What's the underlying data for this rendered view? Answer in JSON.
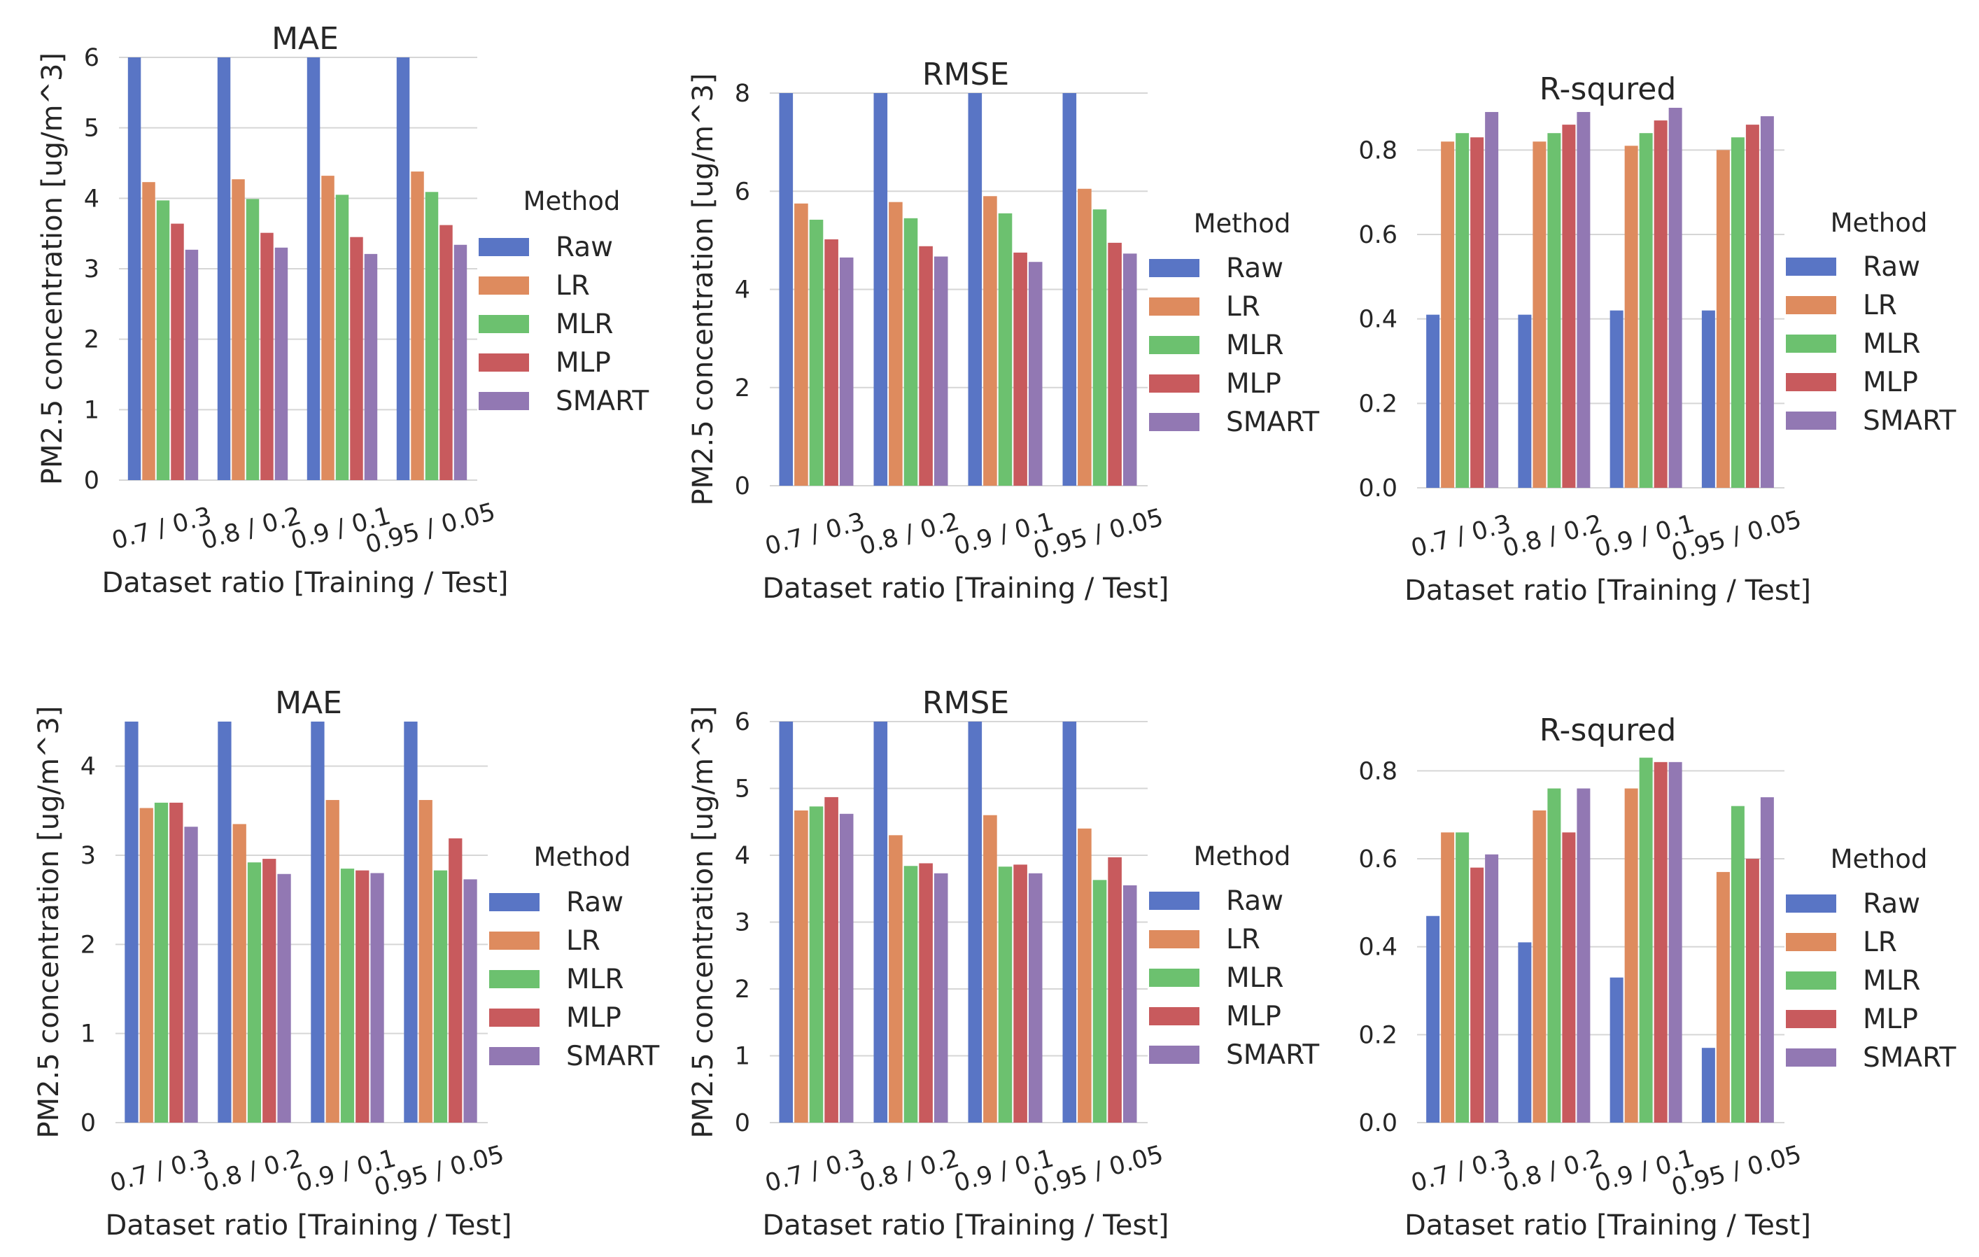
{
  "figure": {
    "legend_title": "Method",
    "xlabel": "Dataset ratio [Training / Test]",
    "ylabel": "PM2.5 concentration [ug/m^3]",
    "categories": [
      "0.7 / 0.3",
      "0.8 / 0.2",
      "0.9 / 0.1",
      "0.95 / 0.05"
    ],
    "series_names": [
      "Raw",
      "LR",
      "MLR",
      "MLP",
      "SMART"
    ],
    "colors": {
      "Raw": "#5975c5",
      "LR": "#de8b5e",
      "MLR": "#6cc16f",
      "MLP": "#c85a5d",
      "SMART": "#9278b3"
    }
  },
  "chart_data": [
    {
      "type": "bar",
      "title": "MAE",
      "xlabel": "Dataset ratio [Training / Test]",
      "ylabel": "PM2.5 concentration [ug/m^3]",
      "categories": [
        "0.7 / 0.3",
        "0.8 / 0.2",
        "0.9 / 0.1",
        "0.95 / 0.05"
      ],
      "ylim": [
        0,
        6
      ],
      "yticks": [
        0,
        1,
        2,
        3,
        4,
        5,
        6
      ],
      "grid": true,
      "legend": "right",
      "series": [
        {
          "name": "Raw",
          "values": [
            6,
            6,
            6,
            6
          ]
        },
        {
          "name": "LR",
          "values": [
            4.23,
            4.27,
            4.32,
            4.38
          ]
        },
        {
          "name": "MLR",
          "values": [
            3.97,
            3.99,
            4.05,
            4.09
          ]
        },
        {
          "name": "MLP",
          "values": [
            3.64,
            3.51,
            3.45,
            3.62
          ]
        },
        {
          "name": "SMART",
          "values": [
            3.27,
            3.3,
            3.21,
            3.34
          ]
        }
      ]
    },
    {
      "type": "bar",
      "title": "RMSE",
      "xlabel": "Dataset ratio [Training / Test]",
      "ylabel": "PM2.5 concentration [ug/m^3]",
      "categories": [
        "0.7 / 0.3",
        "0.8 / 0.2",
        "0.9 / 0.1",
        "0.95 / 0.05"
      ],
      "ylim": [
        0,
        8
      ],
      "yticks": [
        0,
        2,
        4,
        6,
        8
      ],
      "grid": true,
      "legend": "right",
      "series": [
        {
          "name": "Raw",
          "values": [
            8,
            8,
            8,
            8
          ]
        },
        {
          "name": "LR",
          "values": [
            5.75,
            5.78,
            5.9,
            6.05
          ]
        },
        {
          "name": "MLR",
          "values": [
            5.42,
            5.45,
            5.55,
            5.63
          ]
        },
        {
          "name": "MLP",
          "values": [
            5.02,
            4.88,
            4.75,
            4.95
          ]
        },
        {
          "name": "SMART",
          "values": [
            4.65,
            4.67,
            4.56,
            4.73
          ]
        }
      ]
    },
    {
      "type": "bar",
      "title": "R-squred",
      "xlabel": "Dataset ratio [Training / Test]",
      "ylabel": "",
      "categories": [
        "0.7 / 0.3",
        "0.8 / 0.2",
        "0.9 / 0.1",
        "0.95 / 0.05"
      ],
      "ylim": [
        0,
        0.9
      ],
      "yticks": [
        0.0,
        0.2,
        0.4,
        0.6,
        0.8
      ],
      "grid": true,
      "legend": "right",
      "series": [
        {
          "name": "Raw",
          "values": [
            0.41,
            0.41,
            0.42,
            0.42
          ]
        },
        {
          "name": "LR",
          "values": [
            0.82,
            0.82,
            0.81,
            0.8
          ]
        },
        {
          "name": "MLR",
          "values": [
            0.84,
            0.84,
            0.84,
            0.83
          ]
        },
        {
          "name": "MLP",
          "values": [
            0.83,
            0.86,
            0.87,
            0.86
          ]
        },
        {
          "name": "SMART",
          "values": [
            0.89,
            0.89,
            0.9,
            0.88
          ]
        }
      ]
    },
    {
      "type": "bar",
      "title": "MAE",
      "xlabel": "Dataset ratio [Training / Test]",
      "ylabel": "PM2.5 concentration [ug/m^3]",
      "categories": [
        "0.7 / 0.3",
        "0.8 / 0.2",
        "0.9 / 0.1",
        "0.95 / 0.05"
      ],
      "ylim": [
        0,
        4.5
      ],
      "yticks": [
        0,
        1,
        2,
        3,
        4
      ],
      "grid": true,
      "legend": "right",
      "series": [
        {
          "name": "Raw",
          "values": [
            4.5,
            4.5,
            4.5,
            4.5
          ]
        },
        {
          "name": "LR",
          "values": [
            3.53,
            3.35,
            3.62,
            3.62
          ]
        },
        {
          "name": "MLR",
          "values": [
            3.59,
            2.92,
            2.85,
            2.83
          ]
        },
        {
          "name": "MLP",
          "values": [
            3.59,
            2.96,
            2.83,
            3.19
          ]
        },
        {
          "name": "SMART",
          "values": [
            3.32,
            2.79,
            2.8,
            2.73
          ]
        }
      ]
    },
    {
      "type": "bar",
      "title": "RMSE",
      "xlabel": "Dataset ratio [Training / Test]",
      "ylabel": "PM2.5 concentration [ug/m^3]",
      "categories": [
        "0.7 / 0.3",
        "0.8 / 0.2",
        "0.9 / 0.1",
        "0.95 / 0.05"
      ],
      "ylim": [
        0,
        6
      ],
      "yticks": [
        0,
        1,
        2,
        3,
        4,
        5,
        6
      ],
      "grid": true,
      "legend": "right",
      "series": [
        {
          "name": "Raw",
          "values": [
            6,
            6,
            6,
            6
          ]
        },
        {
          "name": "LR",
          "values": [
            4.67,
            4.3,
            4.6,
            4.4
          ]
        },
        {
          "name": "MLR",
          "values": [
            4.73,
            3.84,
            3.83,
            3.63
          ]
        },
        {
          "name": "MLP",
          "values": [
            4.87,
            3.88,
            3.86,
            3.97
          ]
        },
        {
          "name": "SMART",
          "values": [
            4.62,
            3.73,
            3.73,
            3.55
          ]
        }
      ]
    },
    {
      "type": "bar",
      "title": "R-squred",
      "xlabel": "Dataset ratio [Training / Test]",
      "ylabel": "",
      "categories": [
        "0.7 / 0.3",
        "0.8 / 0.2",
        "0.9 / 0.1",
        "0.95 / 0.05"
      ],
      "ylim": [
        0,
        0.85
      ],
      "yticks": [
        0.0,
        0.2,
        0.4,
        0.6,
        0.8
      ],
      "grid": true,
      "legend": "right",
      "series": [
        {
          "name": "Raw",
          "values": [
            0.47,
            0.41,
            0.33,
            0.17
          ]
        },
        {
          "name": "LR",
          "values": [
            0.66,
            0.71,
            0.76,
            0.57
          ]
        },
        {
          "name": "MLR",
          "values": [
            0.66,
            0.76,
            0.83,
            0.72
          ]
        },
        {
          "name": "MLP",
          "values": [
            0.58,
            0.66,
            0.82,
            0.6
          ]
        },
        {
          "name": "SMART",
          "values": [
            0.61,
            0.76,
            0.82,
            0.74
          ]
        }
      ]
    }
  ]
}
